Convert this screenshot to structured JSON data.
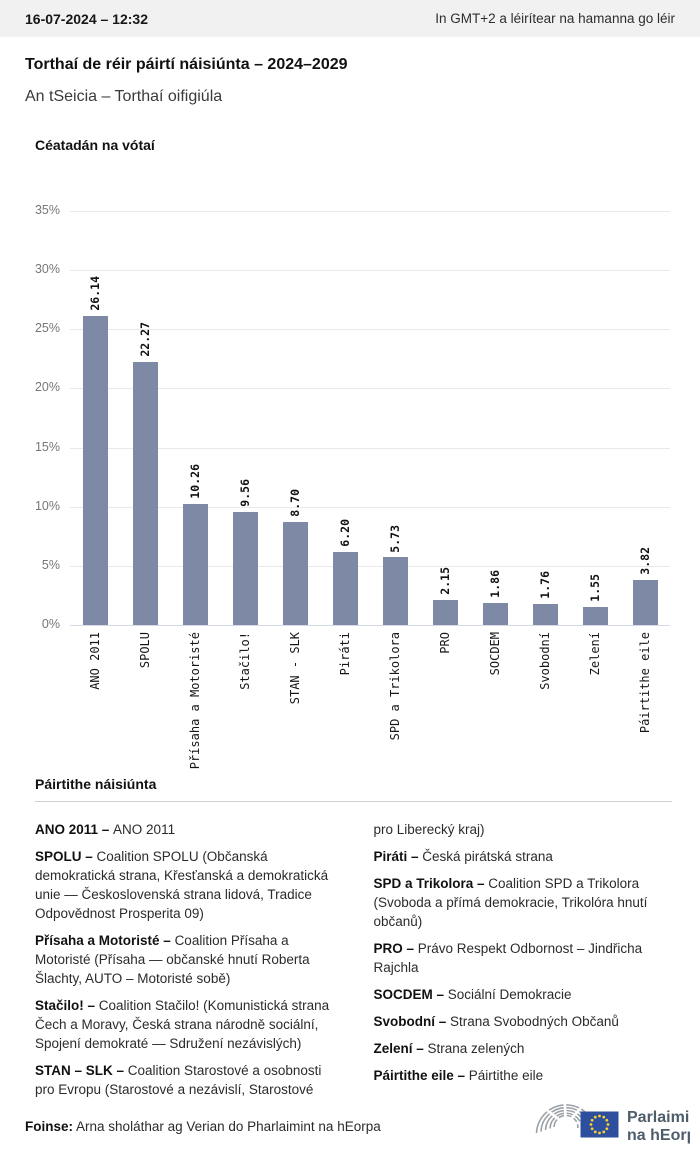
{
  "topbar": {
    "datetime": "16-07-2024 – 12:32",
    "timezone_note": "In GMT+2 a léirítear na hamanna go léir"
  },
  "title": "Torthaí de réir páirtí náisiúnta – 2024–2029",
  "subtitle": "An tSeicia – Torthaí oifigiúla",
  "chart_data": {
    "type": "bar",
    "title": "Céatadán na vótaí",
    "categories": [
      "ANO 2011",
      "SPOLU",
      "Přísaha a Motoristé",
      "Stačilo!",
      "STAN - SLK",
      "Piráti",
      "SPD a Trikolora",
      "PRO",
      "SOCDEM",
      "Svobodní",
      "Zelení",
      "Páirtithe eile"
    ],
    "values": [
      26.14,
      22.27,
      10.26,
      9.56,
      8.7,
      6.2,
      5.73,
      2.15,
      1.86,
      1.76,
      1.55,
      3.82
    ],
    "xlabel": "",
    "ylabel": "",
    "yticks": [
      0,
      5,
      10,
      15,
      20,
      25,
      30,
      35
    ],
    "ytick_suffix": "%",
    "ylim": [
      0,
      35
    ],
    "grid": true,
    "legend_position": "none",
    "bar_color": "#7e89a6"
  },
  "legend": {
    "heading": "Páirtithe náisiúnta",
    "separator": " – ",
    "entries": [
      {
        "name": "ANO 2011",
        "description": "ANO 2011"
      },
      {
        "name": "SPOLU",
        "description": "Coalition SPOLU (Občanská demokratická strana, Křesťanská a demokratická unie — Československá strana lidová, Tradice Odpovědnost Prosperita 09)"
      },
      {
        "name": "Přísaha a Motoristé",
        "description": "Coalition Přísaha a Motoristé (Přísaha — občanské hnutí Roberta Šlachty, AUTO – Motoristé sobě)"
      },
      {
        "name": "Stačilo!",
        "description": "Coalition Stačilo! (Komunistická strana Čech a Moravy, Česká strana národně sociální, Spojení demokraté — Sdružení nezávislých)"
      },
      {
        "name": "STAN – SLK",
        "description": "Coalition Starostové a osobnosti pro Evropu (Starostové a nezávislí, Starostové pro Liberecký kraj)"
      },
      {
        "name": "Piráti",
        "description": "Česká pirátská strana"
      },
      {
        "name": "SPD a Trikolora",
        "description": "Coalition SPD a Trikolora (Svoboda a přímá demokracie, Trikolóra hnutí občanů)"
      },
      {
        "name": "PRO",
        "description": "Právo Respekt Odbornost – Jindřicha Rajchla"
      },
      {
        "name": "SOCDEM",
        "description": "Sociální Demokracie"
      },
      {
        "name": "Svobodní",
        "description": "Strana Svobodných Občanů"
      },
      {
        "name": "Zelení",
        "description": "Strana zelených"
      },
      {
        "name": "Páirtithe eile",
        "description": "Páirtithe eile"
      }
    ]
  },
  "footer": {
    "source_label": "Foinse:",
    "source_text": "Arna sholáthar ag Verian do Pharlaimint na hEorpa",
    "logo_line1": "Parlaimint",
    "logo_line2": "na hEorpa",
    "logo_colors": {
      "text": "#4e5d6c",
      "flag": "#2d4f9e",
      "stars": "#f8d12e",
      "arcs": "#9ba1a7"
    }
  }
}
